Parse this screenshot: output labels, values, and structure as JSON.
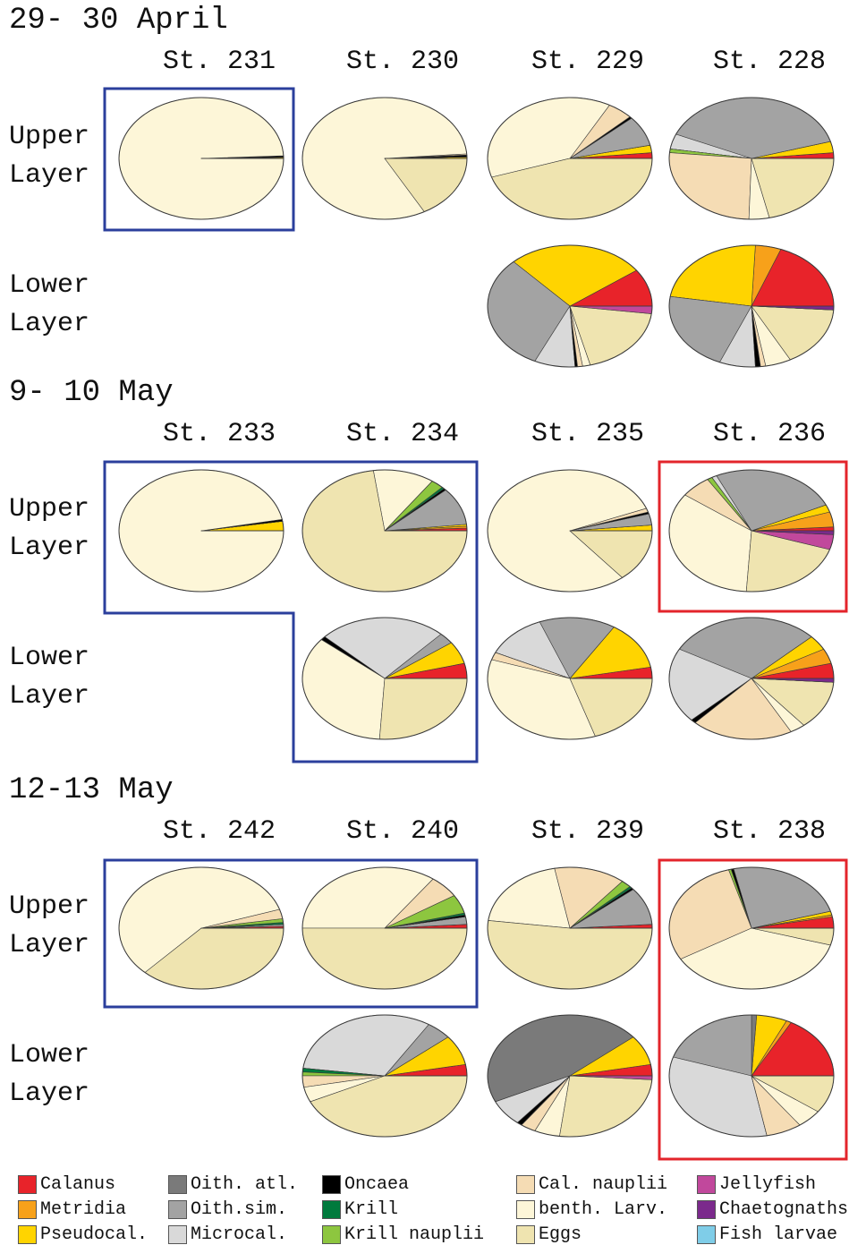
{
  "sections": [
    {
      "title": "29- 30 April",
      "stations": [
        "St. 231",
        "St. 230",
        "St. 229",
        "St. 228"
      ],
      "rows": [
        "Upper Layer",
        "Lower Layer"
      ]
    },
    {
      "title": "9- 10 May",
      "stations": [
        "St. 233",
        "St. 234",
        "St. 235",
        "St. 236"
      ],
      "rows": [
        "Upper Layer",
        "Lower Layer"
      ]
    },
    {
      "title": "12-13 May",
      "stations": [
        "St. 242",
        "St. 240",
        "St. 239",
        "St. 238"
      ],
      "rows": [
        "Upper Layer",
        "Lower Layer"
      ]
    }
  ],
  "legend": {
    "labels": [
      "Calanus",
      "Metridia",
      "Pseudocal.",
      "Oith. atl.",
      "Oith.sim.",
      "Microcal.",
      "Oncaea",
      "Krill",
      "Krill nauplii",
      "Cal. nauplii",
      "benth. Larv.",
      "Eggs",
      "Jellyfish",
      "Chaetognaths",
      "Fish larvae"
    ],
    "colors": [
      "#e8232a",
      "#f7a11a",
      "#ffd400",
      "#7a7a7a",
      "#a3a3a3",
      "#d9d9d9",
      "#000000",
      "#007a3d",
      "#8dc63f",
      "#f5dcb4",
      "#fdf6d8",
      "#efe4b0",
      "#c1489c",
      "#7b2a8c",
      "#7fcde8"
    ]
  },
  "chart_data": [
    {
      "type": "pie",
      "values": [
        0,
        0,
        0.3,
        0,
        0,
        0,
        0.4,
        0,
        0,
        0,
        99.3,
        0,
        0,
        0,
        0
      ]
    },
    {
      "type": "pie",
      "values": [
        0,
        0,
        0.4,
        0,
        0,
        0,
        0.5,
        0,
        0,
        0.3,
        81.8,
        17,
        0,
        0,
        0
      ]
    },
    {
      "type": "pie",
      "values": [
        1.5,
        0,
        2,
        0,
        8,
        0,
        0.5,
        0,
        0,
        5,
        38,
        45,
        0,
        0,
        0
      ]
    },
    {
      "type": "pie",
      "values": [
        1.5,
        0,
        3,
        0,
        39,
        4,
        0,
        0,
        1,
        26,
        4,
        21.5,
        0,
        0,
        0
      ]
    },
    {
      "type": "pie",
      "values": [
        10,
        0,
        27,
        0,
        31,
        8,
        0.5,
        0,
        0,
        1,
        1.5,
        19,
        2,
        0,
        0
      ]
    },
    {
      "type": "pie",
      "values": [
        19,
        5,
        23,
        0,
        21,
        7,
        1,
        0,
        0,
        1,
        5,
        16,
        0,
        1,
        0
      ]
    },
    {
      "type": "pie",
      "values": [
        0,
        0,
        2.5,
        0,
        0,
        0,
        0.5,
        0,
        0,
        0,
        97,
        0,
        0,
        0,
        0
      ]
    },
    {
      "type": "pie",
      "values": [
        0.7,
        0.5,
        0.5,
        0,
        10,
        0,
        0.5,
        0.5,
        2.5,
        0,
        12,
        72.8,
        0,
        0,
        0
      ]
    },
    {
      "type": "pie",
      "values": [
        4,
        0,
        6,
        0,
        3,
        25,
        1,
        0,
        0,
        0,
        35,
        26,
        0,
        0,
        0
      ]
    },
    {
      "type": "pie",
      "values": [
        0,
        0,
        1.5,
        0,
        3,
        0,
        0.5,
        0,
        0,
        1,
        80,
        14,
        0,
        0,
        0
      ]
    },
    {
      "type": "pie",
      "values": [
        3,
        0,
        13,
        0,
        15,
        12,
        0,
        0,
        0,
        2,
        35,
        20,
        0,
        0,
        0
      ]
    },
    {
      "type": "pie",
      "values": [
        1,
        4,
        2,
        0,
        25,
        1,
        0,
        0,
        1,
        6,
        34,
        21,
        4,
        1,
        0
      ]
    },
    {
      "type": "pie",
      "values": [
        4,
        4,
        4,
        0,
        30,
        20,
        1,
        0,
        0,
        20,
        3,
        13,
        0,
        1,
        0
      ]
    },
    {
      "type": "pie",
      "values": [
        0.5,
        0,
        0,
        0,
        0.5,
        0,
        0,
        0.5,
        1,
        2.5,
        58,
        37,
        0,
        0,
        0
      ]
    },
    {
      "type": "pie",
      "values": [
        1,
        0,
        0,
        0,
        2,
        0,
        0.5,
        0.5,
        5,
        6,
        35,
        50,
        0,
        0,
        0
      ]
    },
    {
      "type": "pie",
      "values": [
        3,
        0,
        8,
        0,
        5,
        32,
        0,
        1,
        1,
        3,
        4,
        43,
        0,
        0,
        0
      ]
    },
    {
      "type": "pie",
      "values": [
        1,
        0,
        0,
        0,
        10,
        0,
        0.5,
        0.5,
        2,
        14,
        20,
        52,
        0,
        0,
        0
      ]
    },
    {
      "type": "pie",
      "values": [
        3,
        0,
        8,
        46,
        0,
        7,
        1,
        0,
        0,
        3,
        5,
        26,
        1,
        0,
        0
      ]
    },
    {
      "type": "pie",
      "values": [
        3,
        0.5,
        1,
        0,
        24,
        0,
        0.5,
        0,
        0.5,
        29,
        37,
        4.5,
        0,
        0,
        0
      ]
    },
    {
      "type": "pie",
      "values": [
        17,
        1,
        6,
        1,
        20,
        33,
        0,
        0,
        0,
        7,
        5,
        10,
        0,
        0,
        0
      ]
    }
  ]
}
